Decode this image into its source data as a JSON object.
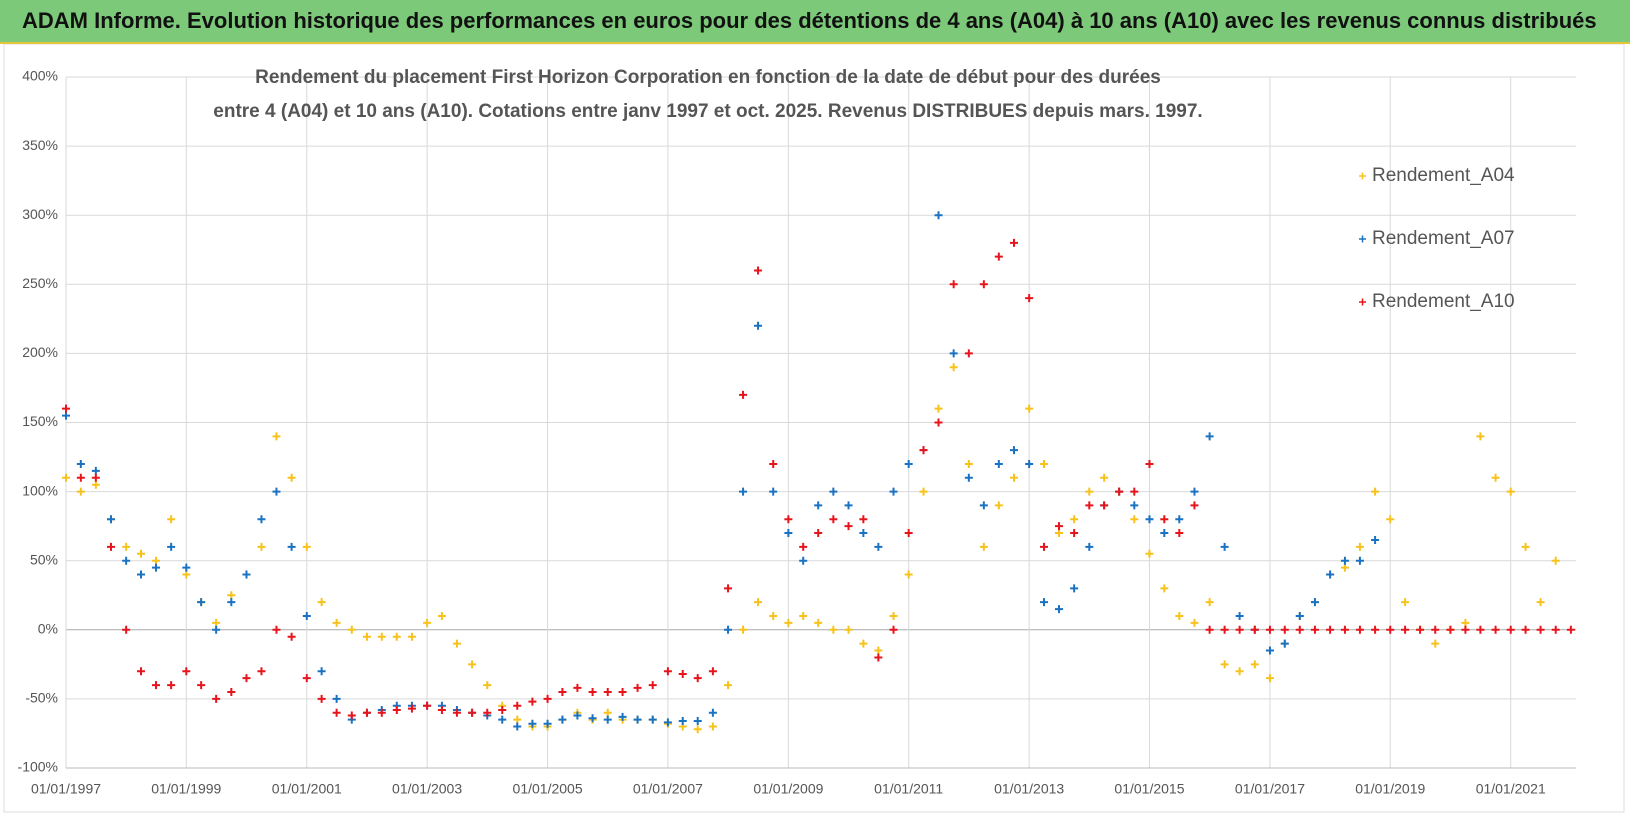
{
  "header": {
    "title": "ADAM Informe. Evolution historique des performances en euros pour des détentions de 4 ans (A04) à 10 ans (A10) avec les revenus connus distribués"
  },
  "chart_data": {
    "type": "scatter",
    "title": [
      "Rendement du placement First Horizon Corporation en fonction de la date de début pour des durées",
      "entre 4 (A04) et 10 ans (A10).  Cotations entre janv 1997 et oct. 2025.  Revenus DISTRIBUES depuis mars. 1997."
    ],
    "x": [
      "1997-01-01",
      "1997-04-01",
      "1997-07-01",
      "1997-10-01",
      "1998-01-01",
      "1998-04-01",
      "1998-07-01",
      "1998-10-01",
      "1999-01-01",
      "1999-04-01",
      "1999-07-01",
      "1999-10-01",
      "2000-01-01",
      "2000-04-01",
      "2000-07-01",
      "2000-10-01",
      "2001-01-01",
      "2001-04-01",
      "2001-07-01",
      "2001-10-01",
      "2002-01-01",
      "2002-04-01",
      "2002-07-01",
      "2002-10-01",
      "2003-01-01",
      "2003-04-01",
      "2003-07-01",
      "2003-10-01",
      "2004-01-01",
      "2004-04-01",
      "2004-07-01",
      "2004-10-01",
      "2005-01-01",
      "2005-04-01",
      "2005-07-01",
      "2005-10-01",
      "2006-01-01",
      "2006-04-01",
      "2006-07-01",
      "2006-10-01",
      "2007-01-01",
      "2007-04-01",
      "2007-07-01",
      "2007-10-01",
      "2008-01-01",
      "2008-04-01",
      "2008-07-01",
      "2008-10-01",
      "2009-01-01",
      "2009-04-01",
      "2009-07-01",
      "2009-10-01",
      "2010-01-01",
      "2010-04-01",
      "2010-07-01",
      "2010-10-01",
      "2011-01-01",
      "2011-04-01",
      "2011-07-01",
      "2011-10-01",
      "2012-01-01",
      "2012-04-01",
      "2012-07-01",
      "2012-10-01",
      "2013-01-01",
      "2013-04-01",
      "2013-07-01",
      "2013-10-01",
      "2014-01-01",
      "2014-04-01",
      "2014-07-01",
      "2014-10-01",
      "2015-01-01",
      "2015-04-01",
      "2015-07-01",
      "2015-10-01",
      "2016-01-01",
      "2016-04-01",
      "2016-07-01",
      "2016-10-01",
      "2017-01-01",
      "2017-04-01",
      "2017-07-01",
      "2017-10-01",
      "2018-01-01",
      "2018-04-01",
      "2018-07-01",
      "2018-10-01",
      "2019-01-01",
      "2019-04-01",
      "2019-07-01",
      "2019-10-01",
      "2020-01-01",
      "2020-04-01",
      "2020-07-01",
      "2020-10-01",
      "2021-01-01",
      "2021-04-01",
      "2021-07-01",
      "2021-10-01",
      "2022-01-01"
    ],
    "series": [
      {
        "name": "Rendement_A04",
        "color": "#f7c21b",
        "values": [
          110,
          100,
          105,
          80,
          60,
          55,
          50,
          80,
          40,
          20,
          5,
          25,
          40,
          60,
          140,
          110,
          60,
          20,
          5,
          0,
          -5,
          -5,
          -5,
          -5,
          5,
          10,
          -10,
          -25,
          -40,
          -55,
          -65,
          -70,
          -70,
          -65,
          -60,
          -65,
          -60,
          -65,
          -65,
          -65,
          -68,
          -70,
          -72,
          -70,
          -40,
          0,
          20,
          10,
          5,
          10,
          5,
          0,
          0,
          -10,
          -15,
          10,
          40,
          100,
          160,
          190,
          120,
          60,
          90,
          110,
          160,
          120,
          70,
          80,
          100,
          110,
          100,
          80,
          55,
          30,
          10,
          5,
          20,
          -25,
          -30,
          -25,
          -35,
          -10,
          10,
          20,
          40,
          45,
          60,
          100,
          80,
          20,
          0,
          -10,
          0,
          5,
          140,
          110,
          100,
          60,
          20,
          50,
          null
        ]
      },
      {
        "name": "Rendement_A07",
        "color": "#1a72c2",
        "values": [
          155,
          120,
          115,
          80,
          50,
          40,
          45,
          60,
          45,
          20,
          0,
          20,
          40,
          80,
          100,
          60,
          10,
          -30,
          -50,
          -65,
          -60,
          -58,
          -55,
          -55,
          -55,
          -55,
          -58,
          -60,
          -62,
          -65,
          -70,
          -68,
          -68,
          -65,
          -62,
          -64,
          -65,
          -63,
          -65,
          -65,
          -67,
          -66,
          -66,
          -60,
          0,
          100,
          220,
          100,
          70,
          50,
          90,
          100,
          90,
          70,
          60,
          100,
          120,
          130,
          300,
          200,
          110,
          90,
          120,
          130,
          120,
          20,
          15,
          30,
          60,
          90,
          100,
          90,
          80,
          70,
          80,
          100,
          140,
          60,
          10,
          0,
          -15,
          -10,
          10,
          20,
          40,
          50,
          50,
          65,
          null,
          null,
          null,
          null,
          null,
          null,
          null,
          null,
          null,
          null,
          null,
          null,
          null
        ]
      },
      {
        "name": "Rendement_A10",
        "color": "#e8141c",
        "values": [
          160,
          110,
          110,
          60,
          0,
          -30,
          -40,
          -40,
          -30,
          -40,
          -50,
          -45,
          -35,
          -30,
          0,
          -5,
          -35,
          -50,
          -60,
          -62,
          -60,
          -60,
          -58,
          -57,
          -55,
          -58,
          -60,
          -60,
          -60,
          -58,
          -55,
          -52,
          -50,
          -45,
          -42,
          -45,
          -45,
          -45,
          -42,
          -40,
          -30,
          -32,
          -35,
          -30,
          30,
          170,
          260,
          120,
          80,
          60,
          70,
          80,
          75,
          80,
          -20,
          0,
          70,
          130,
          150,
          250,
          200,
          250,
          270,
          280,
          240,
          60,
          75,
          70,
          90,
          90,
          100,
          100,
          120,
          80,
          70,
          90,
          0,
          0,
          0,
          0,
          0,
          0,
          0,
          0,
          0,
          0,
          0,
          0,
          0,
          0,
          0,
          0,
          0,
          0,
          0,
          0,
          0,
          0,
          0,
          0,
          0
        ]
      }
    ],
    "xlim": [
      "1997-01-01",
      "2022-02-01"
    ],
    "xticks": [
      {
        "value": "1997-01-01",
        "label": "01/01/1997"
      },
      {
        "value": "1999-01-01",
        "label": "01/01/1999"
      },
      {
        "value": "2001-01-01",
        "label": "01/01/2001"
      },
      {
        "value": "2003-01-01",
        "label": "01/01/2003"
      },
      {
        "value": "2005-01-01",
        "label": "01/01/2005"
      },
      {
        "value": "2007-01-01",
        "label": "01/01/2007"
      },
      {
        "value": "2009-01-01",
        "label": "01/01/2009"
      },
      {
        "value": "2011-01-01",
        "label": "01/01/2011"
      },
      {
        "value": "2013-01-01",
        "label": "01/01/2013"
      },
      {
        "value": "2015-01-01",
        "label": "01/01/2015"
      },
      {
        "value": "2017-01-01",
        "label": "01/01/2017"
      },
      {
        "value": "2019-01-01",
        "label": "01/01/2019"
      },
      {
        "value": "2021-01-01",
        "label": "01/01/2021"
      }
    ],
    "ylim": [
      -100,
      400
    ],
    "yticks": [
      {
        "value": -100,
        "label": "-100%"
      },
      {
        "value": -50,
        "label": "-50%"
      },
      {
        "value": 0,
        "label": "0%"
      },
      {
        "value": 50,
        "label": "50%"
      },
      {
        "value": 100,
        "label": "100%"
      },
      {
        "value": 150,
        "label": "150%"
      },
      {
        "value": 200,
        "label": "200%"
      },
      {
        "value": 250,
        "label": "250%"
      },
      {
        "value": 300,
        "label": "300%"
      },
      {
        "value": 350,
        "label": "350%"
      },
      {
        "value": 400,
        "label": "400%"
      }
    ],
    "grid": true,
    "legend": "right"
  }
}
